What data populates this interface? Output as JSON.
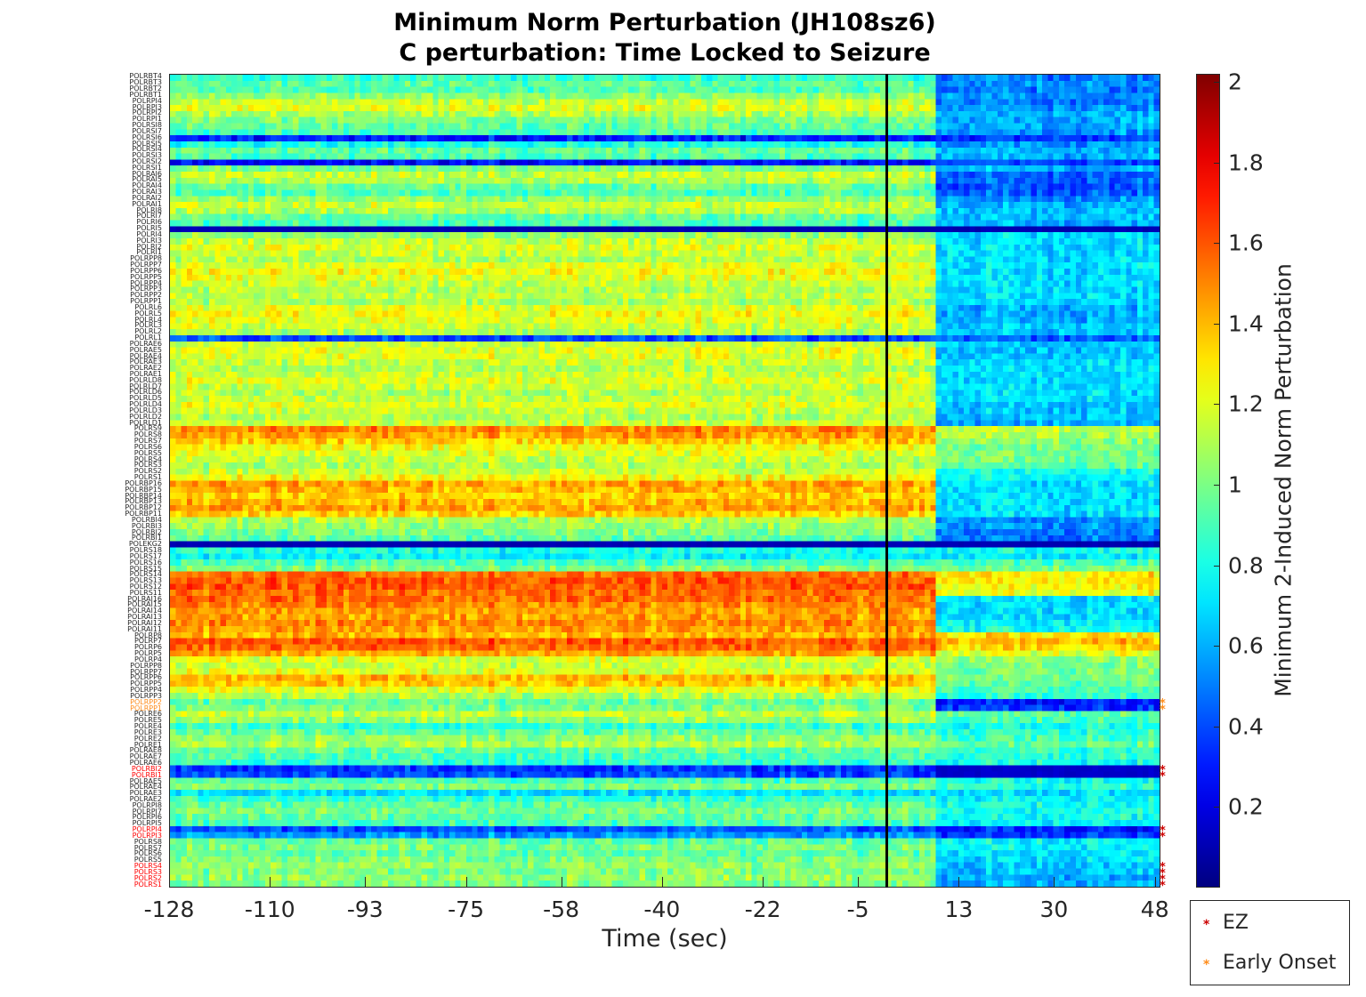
{
  "chart_data": {
    "type": "heatmap",
    "title": "Minimum Norm Perturbation (JH108sz6)",
    "subtitle": "C perturbation:  Time Locked to Seizure",
    "xlabel": "Time (sec)",
    "colorbar_label": "Minimum 2-Induced Norm Perturbation",
    "xlim": [
      -128,
      49
    ],
    "x_ticks": [
      "-128",
      "-110",
      "-93",
      "-75",
      "-58",
      "-40",
      "-22",
      "-5",
      "13",
      "30",
      "48"
    ],
    "seizure_onset_sec": 0,
    "clim": [
      0,
      2.02
    ],
    "colorbar_ticks": [
      "0.2",
      "0.4",
      "0.6",
      "0.8",
      "1",
      "1.2",
      "1.4",
      "1.6",
      "1.8",
      "2"
    ],
    "colormap": "jet",
    "channels": [
      {
        "name": "POLRBT4",
        "pre": 0.85,
        "post": 0.5,
        "mark": ""
      },
      {
        "name": "POLRBT3",
        "pre": 0.95,
        "post": 0.55,
        "mark": ""
      },
      {
        "name": "POLRBT2",
        "pre": 0.9,
        "post": 0.5,
        "mark": ""
      },
      {
        "name": "POLRBT1",
        "pre": 1.05,
        "post": 0.55,
        "mark": ""
      },
      {
        "name": "POLRPI4",
        "pre": 1.15,
        "post": 0.5,
        "mark": ""
      },
      {
        "name": "POLRPI3",
        "pre": 1.2,
        "post": 0.55,
        "mark": ""
      },
      {
        "name": "POLRPI2",
        "pre": 1.1,
        "post": 0.6,
        "mark": ""
      },
      {
        "name": "POLRPI1",
        "pre": 1.0,
        "post": 0.6,
        "mark": ""
      },
      {
        "name": "POLRSI8",
        "pre": 0.95,
        "post": 0.6,
        "mark": ""
      },
      {
        "name": "POLRSI7",
        "pre": 0.9,
        "post": 0.55,
        "mark": ""
      },
      {
        "name": "POLRSI6",
        "pre": 0.3,
        "post": 0.35,
        "mark": ""
      },
      {
        "name": "POLRSI5",
        "pre": 0.8,
        "post": 0.55,
        "mark": ""
      },
      {
        "name": "POLRSI4",
        "pre": 0.95,
        "post": 0.6,
        "mark": ""
      },
      {
        "name": "POLRSI3",
        "pre": 0.9,
        "post": 0.6,
        "mark": ""
      },
      {
        "name": "POLRSI2",
        "pre": 0.25,
        "post": 0.4,
        "mark": ""
      },
      {
        "name": "POLRSI1",
        "pre": 1.0,
        "post": 0.6,
        "mark": ""
      },
      {
        "name": "POLRAI6",
        "pre": 1.15,
        "post": 0.45,
        "mark": ""
      },
      {
        "name": "POLRAI5",
        "pre": 1.1,
        "post": 0.45,
        "mark": ""
      },
      {
        "name": "POLRAI4",
        "pre": 0.95,
        "post": 0.4,
        "mark": ""
      },
      {
        "name": "POLRAI3",
        "pre": 0.9,
        "post": 0.45,
        "mark": ""
      },
      {
        "name": "POLRAI2",
        "pre": 1.05,
        "post": 0.55,
        "mark": ""
      },
      {
        "name": "POLRAI1",
        "pre": 1.15,
        "post": 0.6,
        "mark": ""
      },
      {
        "name": "POLRI8",
        "pre": 1.1,
        "post": 0.65,
        "mark": ""
      },
      {
        "name": "POLRI7",
        "pre": 0.95,
        "post": 0.65,
        "mark": ""
      },
      {
        "name": "POLRI6",
        "pre": 0.9,
        "post": 0.6,
        "mark": ""
      },
      {
        "name": "POLRI5",
        "pre": 0.1,
        "post": 0.1,
        "mark": ""
      },
      {
        "name": "POLRI4",
        "pre": 1.05,
        "post": 0.7,
        "mark": ""
      },
      {
        "name": "POLRI3",
        "pre": 1.15,
        "post": 0.7,
        "mark": ""
      },
      {
        "name": "POLRI2",
        "pre": 1.2,
        "post": 0.7,
        "mark": ""
      },
      {
        "name": "POLRI1",
        "pre": 1.15,
        "post": 0.7,
        "mark": ""
      },
      {
        "name": "POLRPP8",
        "pre": 1.1,
        "post": 0.7,
        "mark": ""
      },
      {
        "name": "POLRPP7",
        "pre": 1.2,
        "post": 0.7,
        "mark": ""
      },
      {
        "name": "POLRPP6",
        "pre": 1.25,
        "post": 0.7,
        "mark": ""
      },
      {
        "name": "POLRPP5",
        "pre": 1.2,
        "post": 0.7,
        "mark": ""
      },
      {
        "name": "POLRPP4",
        "pre": 1.15,
        "post": 0.7,
        "mark": ""
      },
      {
        "name": "POLRPP3",
        "pre": 1.1,
        "post": 0.7,
        "mark": ""
      },
      {
        "name": "POLRPP2",
        "pre": 1.15,
        "post": 0.7,
        "mark": ""
      },
      {
        "name": "POLRPP1",
        "pre": 1.1,
        "post": 0.7,
        "mark": ""
      },
      {
        "name": "POLRL6",
        "pre": 1.2,
        "post": 0.6,
        "mark": ""
      },
      {
        "name": "POLRL5",
        "pre": 1.25,
        "post": 0.6,
        "mark": ""
      },
      {
        "name": "POLRL4",
        "pre": 1.2,
        "post": 0.6,
        "mark": ""
      },
      {
        "name": "POLRL3",
        "pre": 1.15,
        "post": 0.65,
        "mark": ""
      },
      {
        "name": "POLRL2",
        "pre": 1.1,
        "post": 0.65,
        "mark": ""
      },
      {
        "name": "POLRL1",
        "pre": 0.4,
        "post": 0.45,
        "mark": ""
      },
      {
        "name": "POLRAE6",
        "pre": 1.15,
        "post": 0.65,
        "mark": ""
      },
      {
        "name": "POLRAE5",
        "pre": 1.2,
        "post": 0.65,
        "mark": ""
      },
      {
        "name": "POLRAE4",
        "pre": 1.2,
        "post": 0.65,
        "mark": ""
      },
      {
        "name": "POLRAE3",
        "pre": 1.15,
        "post": 0.7,
        "mark": ""
      },
      {
        "name": "POLRAE2",
        "pre": 1.1,
        "post": 0.7,
        "mark": ""
      },
      {
        "name": "POLRAE1",
        "pre": 1.15,
        "post": 0.7,
        "mark": ""
      },
      {
        "name": "POLRLD8",
        "pre": 1.2,
        "post": 0.7,
        "mark": ""
      },
      {
        "name": "POLRLD7",
        "pre": 1.15,
        "post": 0.7,
        "mark": ""
      },
      {
        "name": "POLRLD6",
        "pre": 1.1,
        "post": 0.7,
        "mark": ""
      },
      {
        "name": "POLRLD5",
        "pre": 1.15,
        "post": 0.7,
        "mark": ""
      },
      {
        "name": "POLRLD4",
        "pre": 1.2,
        "post": 0.65,
        "mark": ""
      },
      {
        "name": "POLRLD3",
        "pre": 1.15,
        "post": 0.65,
        "mark": ""
      },
      {
        "name": "POLRLD2",
        "pre": 1.1,
        "post": 0.65,
        "mark": ""
      },
      {
        "name": "POLRLD1",
        "pre": 1.15,
        "post": 0.6,
        "mark": ""
      },
      {
        "name": "POLRS9",
        "pre": 1.5,
        "post": 1.15,
        "mark": ""
      },
      {
        "name": "POLRS8",
        "pre": 1.45,
        "post": 1.1,
        "mark": ""
      },
      {
        "name": "POLRS7",
        "pre": 1.35,
        "post": 1.05,
        "mark": ""
      },
      {
        "name": "POLRS6",
        "pre": 1.25,
        "post": 1.0,
        "mark": ""
      },
      {
        "name": "POLRS5",
        "pre": 1.2,
        "post": 1.0,
        "mark": ""
      },
      {
        "name": "POLRS4",
        "pre": 1.15,
        "post": 1.0,
        "mark": ""
      },
      {
        "name": "POLRS3",
        "pre": 1.1,
        "post": 0.95,
        "mark": ""
      },
      {
        "name": "POLRS2",
        "pre": 1.15,
        "post": 0.8,
        "mark": ""
      },
      {
        "name": "POLRS1",
        "pre": 1.25,
        "post": 0.75,
        "mark": ""
      },
      {
        "name": "POLRBP16",
        "pre": 1.45,
        "post": 0.7,
        "mark": ""
      },
      {
        "name": "POLRBP15",
        "pre": 1.4,
        "post": 0.7,
        "mark": ""
      },
      {
        "name": "POLRBP14",
        "pre": 1.35,
        "post": 0.7,
        "mark": ""
      },
      {
        "name": "POLRBP13",
        "pre": 1.4,
        "post": 0.7,
        "mark": ""
      },
      {
        "name": "POLRBP12",
        "pre": 1.45,
        "post": 0.7,
        "mark": ""
      },
      {
        "name": "POLRBP11",
        "pre": 1.35,
        "post": 0.7,
        "mark": ""
      },
      {
        "name": "POLRBI4",
        "pre": 1.1,
        "post": 0.55,
        "mark": ""
      },
      {
        "name": "POLRBI3",
        "pre": 1.05,
        "post": 0.55,
        "mark": ""
      },
      {
        "name": "POLRBI2",
        "pre": 1.0,
        "post": 0.5,
        "mark": ""
      },
      {
        "name": "POLRBI1",
        "pre": 0.95,
        "post": 0.5,
        "mark": ""
      },
      {
        "name": "POLEKG2",
        "pre": 0.1,
        "post": 0.1,
        "mark": ""
      },
      {
        "name": "POLRS18",
        "pre": 0.8,
        "post": 0.8,
        "mark": ""
      },
      {
        "name": "POLRS17",
        "pre": 0.75,
        "post": 0.75,
        "mark": ""
      },
      {
        "name": "POLRS16",
        "pre": 0.9,
        "post": 0.9,
        "mark": ""
      },
      {
        "name": "POLRS15",
        "pre": 1.0,
        "post": 1.0,
        "mark": ""
      },
      {
        "name": "POLRS14",
        "pre": 1.55,
        "post": 1.3,
        "mark": ""
      },
      {
        "name": "POLRS13",
        "pre": 1.6,
        "post": 1.3,
        "mark": ""
      },
      {
        "name": "POLRS12",
        "pre": 1.6,
        "post": 1.25,
        "mark": ""
      },
      {
        "name": "POLRS11",
        "pre": 1.55,
        "post": 1.25,
        "mark": ""
      },
      {
        "name": "POLRAI16",
        "pre": 1.55,
        "post": 0.7,
        "mark": ""
      },
      {
        "name": "POLRAI15",
        "pre": 1.5,
        "post": 0.7,
        "mark": ""
      },
      {
        "name": "POLRAI14",
        "pre": 1.45,
        "post": 0.7,
        "mark": ""
      },
      {
        "name": "POLRAI13",
        "pre": 1.45,
        "post": 0.7,
        "mark": ""
      },
      {
        "name": "POLRAI12",
        "pre": 1.5,
        "post": 0.75,
        "mark": ""
      },
      {
        "name": "POLRAI11",
        "pre": 1.45,
        "post": 0.8,
        "mark": ""
      },
      {
        "name": "POLRP8",
        "pre": 1.4,
        "post": 1.3,
        "mark": ""
      },
      {
        "name": "POLRP7",
        "pre": 1.6,
        "post": 1.4,
        "mark": ""
      },
      {
        "name": "POLRP6",
        "pre": 1.55,
        "post": 1.35,
        "mark": ""
      },
      {
        "name": "POLRP5",
        "pre": 1.45,
        "post": 1.2,
        "mark": ""
      },
      {
        "name": "POLRP4",
        "pre": 1.2,
        "post": 1.05,
        "mark": ""
      },
      {
        "name": "POLRPP8",
        "pre": 1.15,
        "post": 1.0,
        "mark": ""
      },
      {
        "name": "POLRPP7",
        "pre": 1.2,
        "post": 1.0,
        "mark": ""
      },
      {
        "name": "POLRPP6",
        "pre": 1.4,
        "post": 1.0,
        "mark": ""
      },
      {
        "name": "POLRPP5",
        "pre": 1.35,
        "post": 0.95,
        "mark": ""
      },
      {
        "name": "POLRPP4",
        "pre": 1.2,
        "post": 0.9,
        "mark": ""
      },
      {
        "name": "POLRPP3",
        "pre": 1.1,
        "post": 0.85,
        "mark": ""
      },
      {
        "name": "POLRPP2",
        "pre": 0.95,
        "post": 0.3,
        "mark": "early"
      },
      {
        "name": "POLRPP1",
        "pre": 1.0,
        "post": 0.35,
        "mark": "early"
      },
      {
        "name": "POLRE6",
        "pre": 1.15,
        "post": 0.95,
        "mark": ""
      },
      {
        "name": "POLRE5",
        "pre": 1.05,
        "post": 0.9,
        "mark": ""
      },
      {
        "name": "POLRE4",
        "pre": 0.85,
        "post": 0.8,
        "mark": ""
      },
      {
        "name": "POLRE3",
        "pre": 0.95,
        "post": 0.85,
        "mark": ""
      },
      {
        "name": "POLRE2",
        "pre": 1.05,
        "post": 0.9,
        "mark": ""
      },
      {
        "name": "POLRE1",
        "pre": 1.1,
        "post": 0.95,
        "mark": ""
      },
      {
        "name": "POLRAE8",
        "pre": 0.95,
        "post": 0.85,
        "mark": ""
      },
      {
        "name": "POLRAE7",
        "pre": 0.9,
        "post": 0.85,
        "mark": ""
      },
      {
        "name": "POLRAE6",
        "pre": 0.85,
        "post": 0.8,
        "mark": ""
      },
      {
        "name": "POLRBI2",
        "pre": 0.35,
        "post": 0.15,
        "mark": "ez"
      },
      {
        "name": "POLRBI1",
        "pre": 0.4,
        "post": 0.15,
        "mark": "ez"
      },
      {
        "name": "POLRAE5",
        "pre": 0.9,
        "post": 0.8,
        "mark": ""
      },
      {
        "name": "POLRAE4",
        "pre": 1.0,
        "post": 0.85,
        "mark": ""
      },
      {
        "name": "POLRAE3",
        "pre": 0.7,
        "post": 0.7,
        "mark": ""
      },
      {
        "name": "POLRAE2",
        "pre": 0.85,
        "post": 0.75,
        "mark": ""
      },
      {
        "name": "POLRPI8",
        "pre": 0.95,
        "post": 0.8,
        "mark": ""
      },
      {
        "name": "POLRPI7",
        "pre": 1.0,
        "post": 0.8,
        "mark": ""
      },
      {
        "name": "POLRPI6",
        "pre": 0.95,
        "post": 0.8,
        "mark": ""
      },
      {
        "name": "POLRPI5",
        "pre": 0.9,
        "post": 0.75,
        "mark": ""
      },
      {
        "name": "POLRPI4",
        "pre": 0.4,
        "post": 0.3,
        "mark": "ez"
      },
      {
        "name": "POLRPI3",
        "pre": 0.55,
        "post": 0.35,
        "mark": "ez"
      },
      {
        "name": "POLRS8",
        "pre": 0.95,
        "post": 0.75,
        "mark": ""
      },
      {
        "name": "POLRS7",
        "pre": 1.0,
        "post": 0.75,
        "mark": ""
      },
      {
        "name": "POLRS6",
        "pre": 0.95,
        "post": 0.7,
        "mark": ""
      },
      {
        "name": "POLRS5",
        "pre": 1.0,
        "post": 0.7,
        "mark": ""
      },
      {
        "name": "POLRS4",
        "pre": 1.05,
        "post": 0.65,
        "mark": "ez"
      },
      {
        "name": "POLRS3",
        "pre": 1.0,
        "post": 0.65,
        "mark": "ez"
      },
      {
        "name": "POLRS2",
        "pre": 1.05,
        "post": 0.6,
        "mark": "ez"
      },
      {
        "name": "POLRS1",
        "pre": 1.0,
        "post": 0.6,
        "mark": "ez"
      }
    ],
    "legend": {
      "placement": "bottom-right-outside",
      "entries": [
        {
          "label": "EZ",
          "color": "#cc0000"
        },
        {
          "label": "Early Onset",
          "color": "#ff8c1a"
        }
      ]
    },
    "ez_label_color": "#ff0000",
    "early_label_color": "#ff8c1a"
  }
}
